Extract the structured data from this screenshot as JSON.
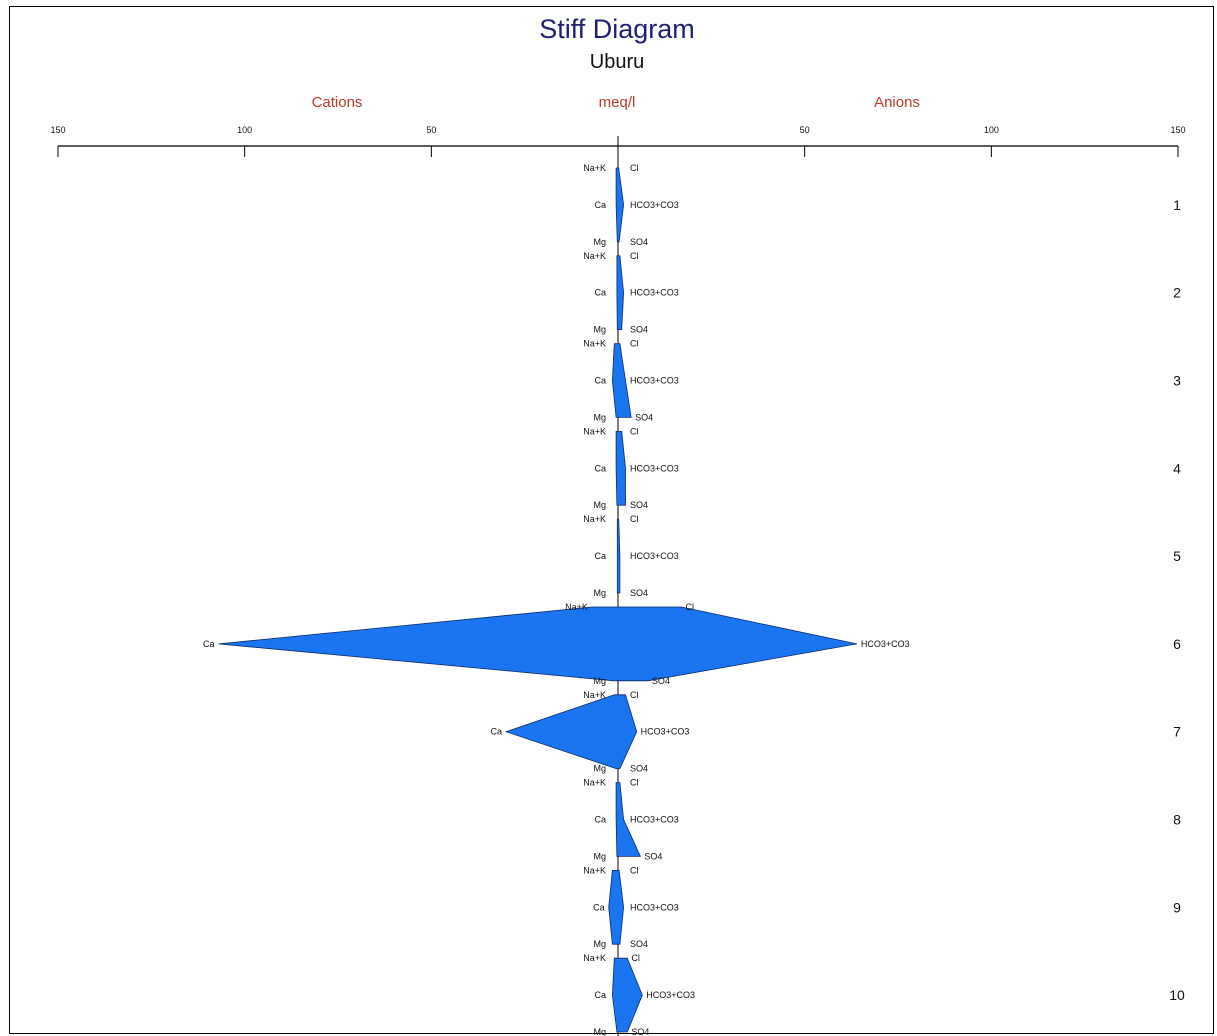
{
  "chart_data": {
    "type": "stiff",
    "title": "Stiff Diagram",
    "subtitle": "Uburu",
    "left_header": "Cations",
    "center_header": "meq/l",
    "right_header": "Anions",
    "tick_labels_left": [
      "150",
      "100",
      "50"
    ],
    "tick_labels_right": [
      "50",
      "100",
      "150"
    ],
    "xlim": [
      -150,
      150
    ],
    "cation_labels": [
      "Na+K",
      "Ca",
      "Mg"
    ],
    "anion_labels": [
      "Cl",
      "HCO3+CO3",
      "SO4"
    ],
    "fill_color": "#1a75f0",
    "samples": [
      {
        "label": "1",
        "cations": {
          "Na+K": 0.5,
          "Ca": 0.5,
          "Mg": 0.2
        },
        "anions": {
          "Cl": 0.2,
          "HCO3+CO3": 1.5,
          "SO4": 0.3
        }
      },
      {
        "label": "2",
        "cations": {
          "Na+K": 0.3,
          "Ca": 0.3,
          "Mg": 0.2
        },
        "anions": {
          "Cl": 0.5,
          "HCO3+CO3": 1.5,
          "SO4": 1.0
        }
      },
      {
        "label": "3",
        "cations": {
          "Na+K": 1.0,
          "Ca": 1.5,
          "Mg": 0.5
        },
        "anions": {
          "Cl": 0.5,
          "HCO3+CO3": 2.0,
          "SO4": 3.5
        }
      },
      {
        "label": "4",
        "cations": {
          "Na+K": 0.5,
          "Ca": 0.5,
          "Mg": 0.3
        },
        "anions": {
          "Cl": 1.0,
          "HCO3+CO3": 2.0,
          "SO4": 2.0
        }
      },
      {
        "label": "5",
        "cations": {
          "Na+K": 0.2,
          "Ca": 0.2,
          "Mg": 0.2
        },
        "anions": {
          "Cl": 0.2,
          "HCO3+CO3": 0.5,
          "SO4": 0.5
        }
      },
      {
        "label": "6",
        "cations": {
          "Na+K": 7.0,
          "Ca": 107,
          "Mg": 1.0
        },
        "anions": {
          "Cl": 17,
          "HCO3+CO3": 64,
          "SO4": 8.0
        }
      },
      {
        "label": "7",
        "cations": {
          "Na+K": 1.0,
          "Ca": 30,
          "Mg": 0.5
        },
        "anions": {
          "Cl": 2.0,
          "HCO3+CO3": 5.0,
          "SO4": 0.5
        }
      },
      {
        "label": "8",
        "cations": {
          "Na+K": 0.5,
          "Ca": 0.5,
          "Mg": 0.3
        },
        "anions": {
          "Cl": 0.5,
          "HCO3+CO3": 1.5,
          "SO4": 6.0
        }
      },
      {
        "label": "9",
        "cations": {
          "Na+K": 1.5,
          "Ca": 2.5,
          "Mg": 1.5
        },
        "anions": {
          "Cl": 0.3,
          "HCO3+CO3": 1.5,
          "SO4": 0.5
        }
      },
      {
        "label": "10",
        "cations": {
          "Na+K": 1.0,
          "Ca": 1.5,
          "Mg": 0.3
        },
        "anions": {
          "Cl": 2.5,
          "HCO3+CO3": 6.5,
          "SO4": 2.5
        }
      }
    ]
  }
}
